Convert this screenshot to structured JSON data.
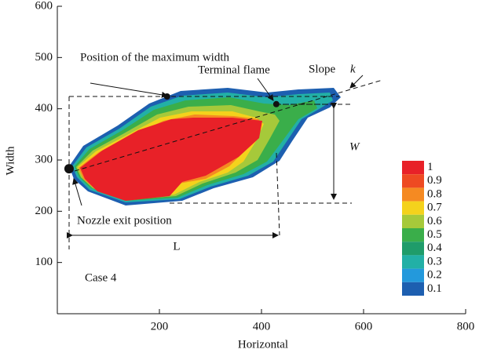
{
  "chart_data": {
    "type": "contour",
    "xlabel": "Horizontal",
    "ylabel": "Width",
    "xlim": [
      0,
      800
    ],
    "ylim": [
      0,
      600
    ],
    "xticks": [
      200,
      400,
      600,
      800
    ],
    "yticks": [
      100,
      200,
      300,
      400,
      500,
      600
    ],
    "colorbar": {
      "levels": [
        1,
        0.9,
        0.8,
        0.7,
        0.6,
        0.5,
        0.4,
        0.3,
        0.2,
        0.1
      ],
      "colors": [
        "#e82128",
        "#ee4a22",
        "#f58a22",
        "#f4d21c",
        "#a6c93a",
        "#3aae4a",
        "#1f9c6a",
        "#22b0a6",
        "#2399dc",
        "#1d5fb0"
      ]
    },
    "points": {
      "x": [
        23,
        215,
        429
      ],
      "y": [
        283,
        424,
        409
      ]
    },
    "annotations": {
      "case": "Case 4",
      "max_width": "Position of the maximum width",
      "terminal": "Terminal flame",
      "slope": "Slope",
      "slope_var": "k",
      "width_var": "W",
      "length": "L",
      "nozzle": "Nozzle exit position"
    }
  }
}
